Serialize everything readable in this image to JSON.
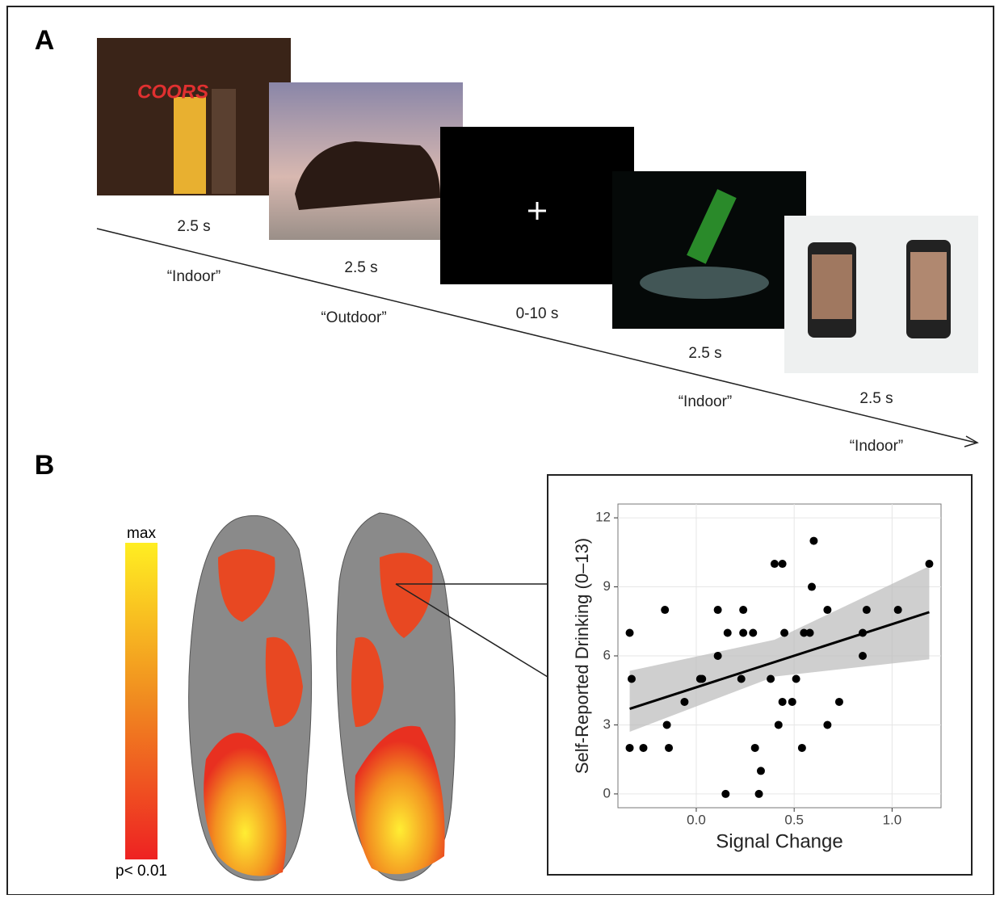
{
  "panel_a": {
    "label": "A",
    "steps": [
      {
        "duration": "2.5 s",
        "response": "“Indoor”"
      },
      {
        "duration": "2.5 s",
        "response": "“Outdoor”"
      },
      {
        "duration": "0-10 s"
      },
      {
        "duration": "2.5 s",
        "response": "“Indoor”"
      },
      {
        "duration": "2.5 s",
        "response": "“Indoor”"
      }
    ]
  },
  "panel_b": {
    "label": "B",
    "colorbar": {
      "top": "max",
      "bottom": "p< 0.01"
    }
  },
  "chart_data": {
    "type": "scatter",
    "xlabel": "Signal Change",
    "ylabel": "Self-Reported Drinking (0–13)",
    "xlim": [
      -0.4,
      1.25
    ],
    "ylim": [
      -0.6,
      12.6
    ],
    "xticks": [
      {
        "value": 0,
        "label": "0.0"
      },
      0.5,
      {
        "value": 1,
        "label": "1.0"
      }
    ],
    "yticks": [
      0,
      3,
      6,
      9,
      12
    ],
    "grid": true,
    "color": "#000000",
    "x": [
      -0.34,
      -0.34,
      -0.33,
      -0.27,
      -0.16,
      -0.15,
      -0.14,
      -0.06,
      0.02,
      0.03,
      0.11,
      0.11,
      0.15,
      0.16,
      0.23,
      0.24,
      0.24,
      0.29,
      0.3,
      0.32,
      0.33,
      0.38,
      0.4,
      0.42,
      0.44,
      0.44,
      0.45,
      0.49,
      0.51,
      0.54,
      0.55,
      0.58,
      0.59,
      0.6,
      0.67,
      0.67,
      0.73,
      0.85,
      0.85,
      0.87,
      1.03,
      1.19
    ],
    "y": [
      2,
      7,
      5,
      2,
      8,
      3,
      2,
      4,
      5,
      5,
      8,
      6,
      0,
      7,
      5,
      8,
      7,
      7,
      2,
      0,
      1,
      5,
      10,
      3,
      10,
      4,
      7,
      4,
      5,
      2,
      7,
      7,
      9,
      11,
      8,
      3,
      4,
      6,
      7,
      8,
      8,
      10
    ],
    "fit": {
      "x": [
        -0.34,
        1.19
      ],
      "y": [
        3.7,
        7.9
      ],
      "band_x": [
        -0.34,
        0.4,
        1.19
      ],
      "band_lower": [
        2.7,
        5.1,
        5.85
      ],
      "band_upper": [
        5.35,
        6.7,
        9.9
      ]
    }
  }
}
